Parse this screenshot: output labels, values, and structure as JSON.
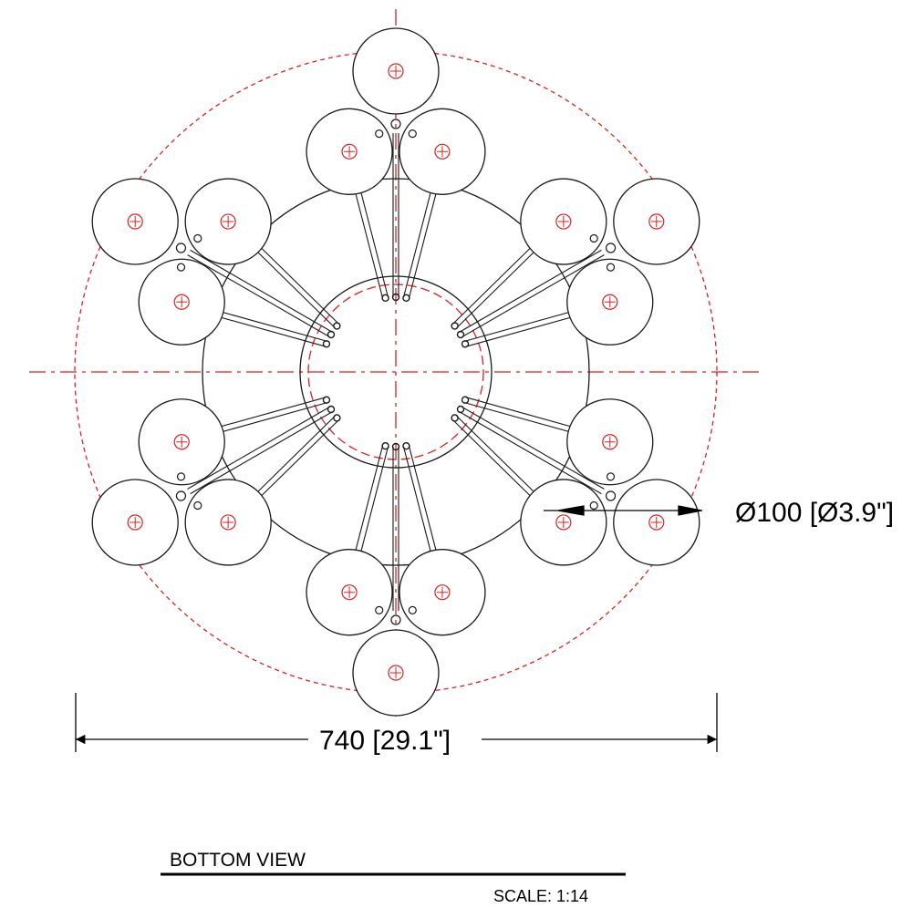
{
  "drawing": {
    "view_title": "BOTTOM VIEW",
    "scale_label": "SCALE: 1:14",
    "overall_diameter_label": "740 [29.1\"]",
    "bowl_diameter_label": "Ø100 [Ø3.9\"]",
    "colors": {
      "linework": "#1a1a1a",
      "centerline": "#e02020"
    },
    "ball_count": 18,
    "stem_count": 18,
    "views": [
      "bottom"
    ]
  }
}
